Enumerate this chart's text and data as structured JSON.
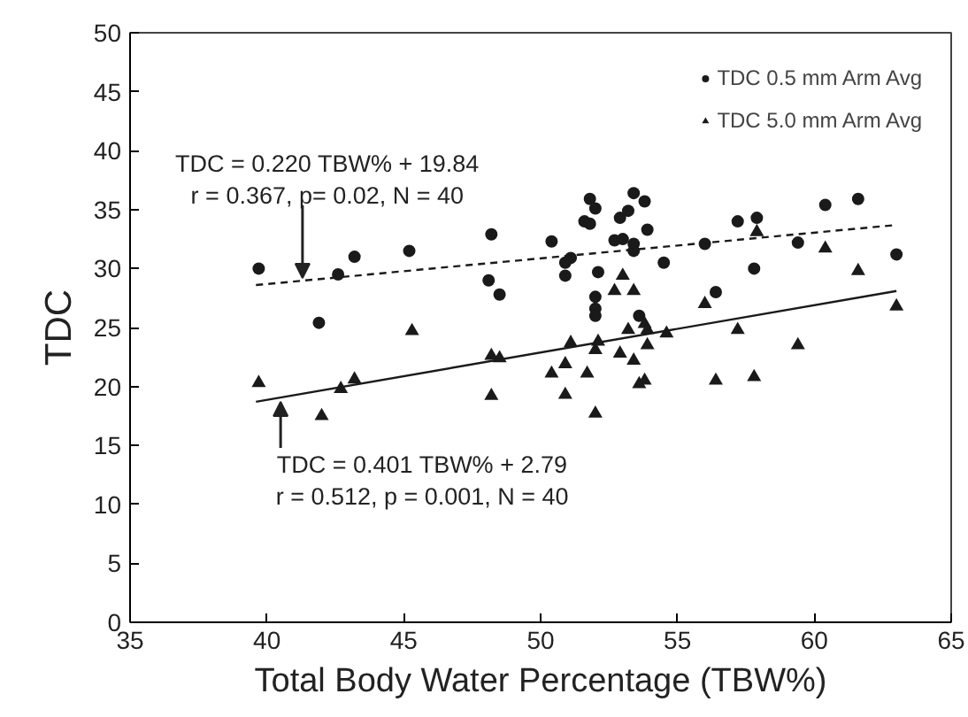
{
  "chart_data": {
    "type": "scatter",
    "xlabel": "Total Body Water Percentage (TBW%)",
    "ylabel": "TDC",
    "xlim": [
      35,
      65
    ],
    "xticks": [
      35,
      40,
      45,
      50,
      55,
      60,
      65
    ],
    "ylim": [
      0,
      50
    ],
    "yticks": [
      0,
      5,
      10,
      15,
      20,
      25,
      30,
      35,
      40,
      45,
      50
    ],
    "grid": false,
    "legend": "top right",
    "series": [
      {
        "name": "TDC 0.5 mm Arm Avg",
        "marker": "circle",
        "color": "#1a1a1a",
        "x": [
          39.7,
          42.6,
          43.2,
          45.2,
          48.2,
          48.1,
          48.5,
          41.9,
          50.4,
          51.8,
          52.0,
          51.6,
          51.8,
          50.9,
          51.1,
          50.9,
          52.1,
          52.0,
          52.0,
          52.0,
          52.7,
          53.0,
          52.9,
          53.2,
          53.4,
          53.8,
          53.9,
          53.4,
          53.4,
          53.6,
          54.5,
          56.0,
          57.2,
          57.9,
          56.4,
          57.8,
          59.4,
          60.4,
          61.6,
          63.0
        ],
        "values": [
          30.0,
          29.5,
          31.0,
          31.5,
          32.9,
          29.0,
          27.8,
          25.4,
          32.3,
          35.9,
          35.1,
          34.0,
          33.8,
          30.5,
          30.9,
          29.4,
          29.7,
          27.6,
          26.6,
          26.0,
          32.4,
          32.5,
          34.3,
          34.9,
          36.4,
          35.7,
          33.3,
          32.1,
          31.5,
          26.0,
          30.5,
          32.1,
          34.0,
          34.3,
          28.0,
          30.0,
          32.2,
          35.4,
          35.9,
          31.2
        ]
      },
      {
        "name": "TDC 5.0 mm Arm Avg",
        "marker": "triangle",
        "color": "#1a1a1a",
        "x": [
          39.7,
          42.0,
          42.7,
          43.2,
          45.3,
          48.2,
          48.5,
          48.2,
          51.1,
          50.4,
          50.9,
          50.9,
          51.7,
          52.0,
          52.1,
          52.0,
          53.0,
          52.7,
          53.4,
          52.9,
          53.2,
          53.4,
          53.8,
          53.9,
          53.9,
          53.6,
          53.8,
          54.6,
          56.0,
          57.2,
          56.4,
          57.8,
          57.9,
          59.4,
          60.4,
          61.6,
          63.0
        ],
        "values": [
          20.3,
          17.5,
          19.8,
          20.6,
          24.7,
          22.6,
          22.4,
          19.2,
          23.7,
          21.1,
          21.9,
          19.3,
          21.1,
          23.1,
          23.8,
          17.7,
          29.4,
          28.1,
          28.1,
          22.8,
          24.8,
          22.2,
          25.3,
          24.8,
          23.5,
          20.2,
          20.5,
          24.5,
          27.0,
          24.8,
          20.5,
          20.8,
          33.1,
          23.5,
          31.7,
          29.8,
          26.8
        ]
      },
      {
        "type": "line",
        "line_style": "dashed",
        "color": "#1a1a1a",
        "x": [
          39.6,
          63.0
        ],
        "values": [
          28.6,
          33.7
        ]
      },
      {
        "type": "line",
        "line_style": "solid",
        "color": "#1a1a1a",
        "x": [
          39.6,
          63.0
        ],
        "values": [
          18.7,
          28.1
        ]
      }
    ],
    "annotations": [
      {
        "text": "TDC = 0.220 TBW% + 19.84\nr = 0.367, p= 0.02, N = 40",
        "x": 41.3,
        "y": 28.9
      },
      {
        "text": "TDC = 0.401 TBW% + 2.79\nr = 0.512, p = 0.001, N = 40",
        "x": 40.5,
        "y": 19.0
      }
    ]
  }
}
